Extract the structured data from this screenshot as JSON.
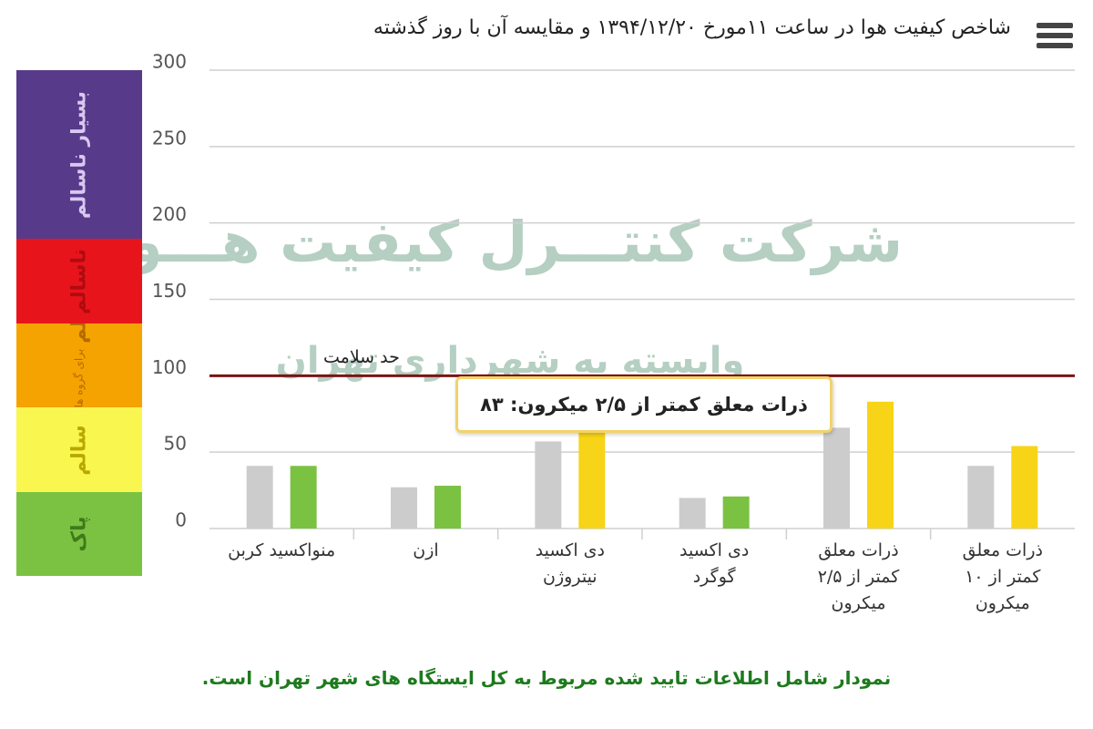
{
  "chart_data": {
    "type": "bar",
    "title": "شاخص کیفیت هوا در ساعت ۱۱مورخ ۱۳۹۴/۱۲/۲۰ و مقایسه آن با روز گذشته",
    "categories": [
      "منواکسید کربن",
      "ازن",
      "دی اکسید نیتروژن",
      "دی اکسید گوگرد",
      "ذرات معلق کمتر از ۲/۵ میکرون",
      "ذرات معلق کمتر از ۱۰ میکرون"
    ],
    "series": [
      {
        "color": "#cccccc",
        "values": [
          41,
          27,
          57,
          20,
          66,
          41
        ]
      },
      {
        "colors": [
          "#7cc242",
          "#7cc242",
          "#f7d417",
          "#7cc242",
          "#f7d417",
          "#f7d417"
        ],
        "values": [
          41,
          28,
          65,
          21,
          83,
          54
        ]
      }
    ],
    "ylim": [
      0,
      300
    ],
    "yticks": [
      0,
      50,
      100,
      150,
      200,
      250,
      300
    ],
    "grid": true,
    "reference_line": {
      "value": 100,
      "label": "حد سلامت",
      "color": "#7a1414"
    },
    "tooltip": "ذرات معلق کمتر از ۲/۵ میکرون: ۸۳",
    "bands": [
      {
        "label": "بسیار ناسالم",
        "color": "#583a8a",
        "text_color": "#d9c8f0"
      },
      {
        "label": "ناسالم",
        "color": "#e8141c",
        "text_color": "#b00a10"
      },
      {
        "label": "ناسالم",
        "sublabel": "برای گروه های حساس",
        "color": "#f5a300",
        "text_color": "#b36a00"
      },
      {
        "label": "سالم",
        "color": "#f9f650",
        "text_color": "#b9a800"
      },
      {
        "label": "پاک",
        "color": "#7cc242",
        "text_color": "#3f7a1a"
      }
    ],
    "watermark": [
      "شرکت کنتـــرل کیفیت هـــوا",
      "وابسته به شهرداری تهران"
    ],
    "footer": "نمودار شامل اطلاعات تایید شده مربوط به کل ایستگاه های شهر تهران است."
  }
}
